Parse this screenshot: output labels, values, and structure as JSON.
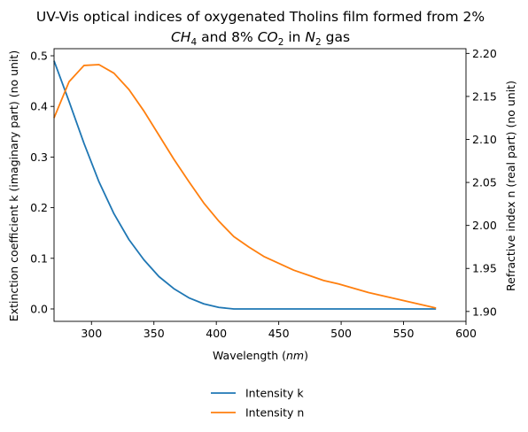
{
  "chart_data": {
    "type": "line",
    "title_line1": "UV-Vis optical indices of oxygenated Tholins film formed from 2%",
    "title_line2": {
      "species1": "CH",
      "species1_sub": "4",
      "mid": " and 8% ",
      "species2": "CO",
      "species2_sub": "2",
      "in": " in ",
      "species3": "N",
      "species3_sub": "2",
      "tail": " gas"
    },
    "xlabel": {
      "prefix": "Wavelength (",
      "unit": "nm",
      "suffix": ")"
    },
    "ylabel_left": "Extinction coefficient k (imaginary part) (no unit)",
    "ylabel_right": "Refractive index n (real part) (no unit)",
    "xlim": [
      270,
      600
    ],
    "ylim_left": [
      -0.0245,
      0.514
    ],
    "ylim_right": [
      1.8885,
      2.2055
    ],
    "x_ticks": [
      "300",
      "350",
      "400",
      "450",
      "500",
      "550",
      "600"
    ],
    "y_left_ticks": [
      "0.0",
      "0.1",
      "0.2",
      "0.3",
      "0.4",
      "0.5"
    ],
    "y_right_ticks": [
      "1.90",
      "1.95",
      "2.00",
      "2.05",
      "2.10",
      "2.15",
      "2.20"
    ],
    "grid": false,
    "legend_position": "bottom-center, below axes",
    "series": [
      {
        "name": "Intensity k",
        "axis": "left",
        "color": "#1f77b4",
        "x": [
          270,
          282,
          294,
          306,
          318,
          330,
          342,
          354,
          366,
          378,
          390,
          402,
          414,
          430,
          460,
          500,
          540,
          576
        ],
        "y": [
          0.49,
          0.41,
          0.327,
          0.251,
          0.188,
          0.137,
          0.097,
          0.064,
          0.04,
          0.022,
          0.01,
          0.003,
          0.0,
          0.0,
          0.0,
          0.0,
          0.0,
          0.0
        ]
      },
      {
        "name": "Intensity n",
        "axis": "right",
        "color": "#ff7f0e",
        "x": [
          270,
          282,
          294,
          306,
          318,
          330,
          342,
          354,
          366,
          378,
          390,
          402,
          414,
          426,
          438,
          450,
          462,
          474,
          486,
          498,
          510,
          522,
          534,
          546,
          558,
          570,
          576
        ],
        "y": [
          2.125,
          2.167,
          2.186,
          2.187,
          2.177,
          2.158,
          2.133,
          2.105,
          2.077,
          2.051,
          2.026,
          2.005,
          1.987,
          1.975,
          1.964,
          1.956,
          1.948,
          1.942,
          1.936,
          1.932,
          1.927,
          1.922,
          1.918,
          1.914,
          1.91,
          1.906,
          1.904
        ]
      }
    ]
  }
}
